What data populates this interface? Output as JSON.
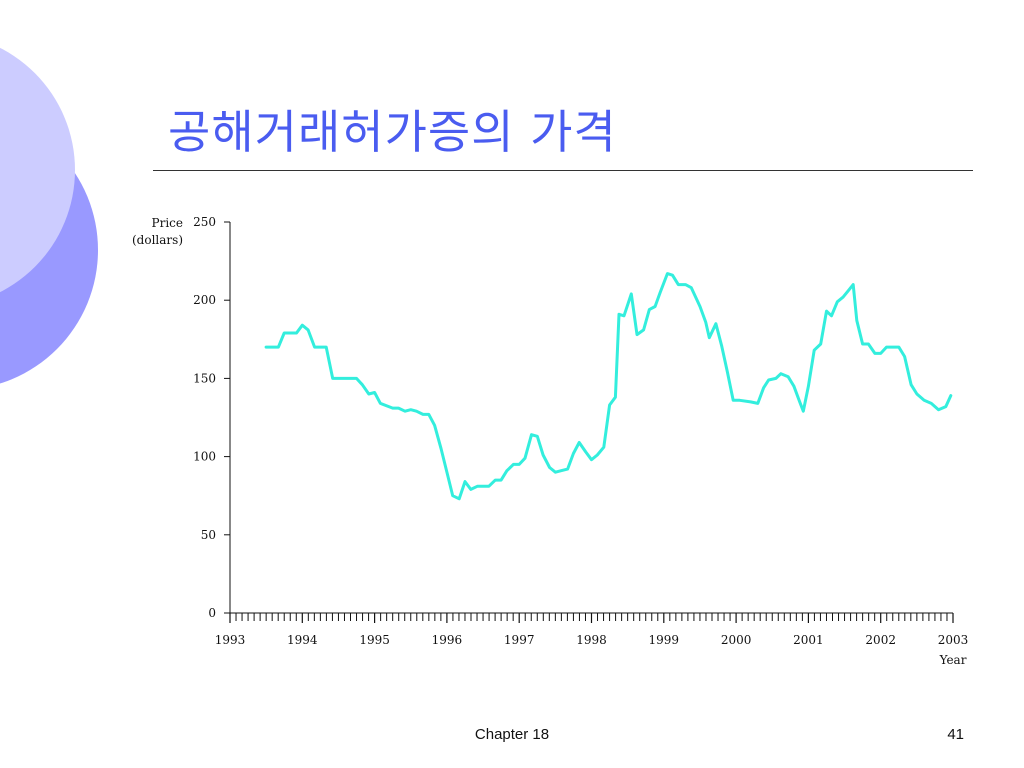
{
  "slide": {
    "title": "공해거래허가증의 가격",
    "footer_center": "Chapter 18",
    "page_number": "41",
    "colors": {
      "title": "#4a5cf0",
      "deco_light": "#ccccff",
      "deco_dark": "#9999ff",
      "line": "#33eedd"
    }
  },
  "chart_data": {
    "type": "line",
    "title": "",
    "xlabel": "Year",
    "ylabel": "Price\n(dollars)",
    "xlim": [
      1993,
      2003
    ],
    "ylim": [
      0,
      250
    ],
    "x_ticks": [
      1993,
      1994,
      1995,
      1996,
      1997,
      1998,
      1999,
      2000,
      2001,
      2002,
      2003
    ],
    "y_ticks": [
      0,
      50,
      100,
      150,
      200,
      250
    ],
    "grid": false,
    "series": [
      {
        "name": "",
        "color": "#33eedd",
        "points": [
          [
            1993.5,
            170
          ],
          [
            1993.67,
            170
          ],
          [
            1993.75,
            179
          ],
          [
            1993.92,
            179
          ],
          [
            1994.0,
            184
          ],
          [
            1994.08,
            181
          ],
          [
            1994.17,
            170
          ],
          [
            1994.33,
            170
          ],
          [
            1994.42,
            150
          ],
          [
            1994.58,
            150
          ],
          [
            1994.75,
            150
          ],
          [
            1994.83,
            146
          ],
          [
            1994.92,
            140
          ],
          [
            1995.0,
            141
          ],
          [
            1995.08,
            134
          ],
          [
            1995.25,
            131
          ],
          [
            1995.33,
            131
          ],
          [
            1995.42,
            129
          ],
          [
            1995.5,
            130
          ],
          [
            1995.58,
            129
          ],
          [
            1995.67,
            127
          ],
          [
            1995.75,
            127
          ],
          [
            1995.83,
            120
          ],
          [
            1995.92,
            105
          ],
          [
            1996.0,
            90
          ],
          [
            1996.08,
            75
          ],
          [
            1996.17,
            73
          ],
          [
            1996.25,
            84
          ],
          [
            1996.33,
            79
          ],
          [
            1996.42,
            81
          ],
          [
            1996.5,
            81
          ],
          [
            1996.58,
            81
          ],
          [
            1996.67,
            85
          ],
          [
            1996.75,
            85
          ],
          [
            1996.83,
            91
          ],
          [
            1996.92,
            95
          ],
          [
            1997.0,
            95
          ],
          [
            1997.08,
            99
          ],
          [
            1997.17,
            114
          ],
          [
            1997.25,
            113
          ],
          [
            1997.33,
            101
          ],
          [
            1997.42,
            93
          ],
          [
            1997.5,
            90
          ],
          [
            1997.58,
            91
          ],
          [
            1997.67,
            92
          ],
          [
            1997.75,
            102
          ],
          [
            1997.83,
            109
          ],
          [
            1997.92,
            103
          ],
          [
            1998.0,
            98
          ],
          [
            1998.08,
            101
          ],
          [
            1998.17,
            106
          ],
          [
            1998.25,
            133
          ],
          [
            1998.33,
            138
          ],
          [
            1998.38,
            191
          ],
          [
            1998.45,
            190
          ],
          [
            1998.55,
            204
          ],
          [
            1998.63,
            178
          ],
          [
            1998.72,
            181
          ],
          [
            1998.8,
            194
          ],
          [
            1998.88,
            196
          ],
          [
            1998.95,
            205
          ],
          [
            1999.05,
            217
          ],
          [
            1999.12,
            216
          ],
          [
            1999.2,
            210
          ],
          [
            1999.3,
            210
          ],
          [
            1999.38,
            208
          ],
          [
            1999.5,
            196
          ],
          [
            1999.58,
            186
          ],
          [
            1999.63,
            176
          ],
          [
            1999.72,
            185
          ],
          [
            1999.8,
            171
          ],
          [
            1999.88,
            154
          ],
          [
            1999.96,
            136
          ],
          [
            2000.05,
            136
          ],
          [
            2000.2,
            135
          ],
          [
            2000.3,
            134
          ],
          [
            2000.38,
            144
          ],
          [
            2000.45,
            149
          ],
          [
            2000.55,
            150
          ],
          [
            2000.62,
            153
          ],
          [
            2000.72,
            151
          ],
          [
            2000.8,
            145
          ],
          [
            2000.88,
            135
          ],
          [
            2000.93,
            129
          ],
          [
            2001.0,
            145
          ],
          [
            2001.08,
            168
          ],
          [
            2001.17,
            172
          ],
          [
            2001.25,
            193
          ],
          [
            2001.32,
            190
          ],
          [
            2001.4,
            199
          ],
          [
            2001.48,
            202
          ],
          [
            2001.55,
            206
          ],
          [
            2001.62,
            210
          ],
          [
            2001.67,
            187
          ],
          [
            2001.75,
            172
          ],
          [
            2001.83,
            172
          ],
          [
            2001.92,
            166
          ],
          [
            2002.0,
            166
          ],
          [
            2002.08,
            170
          ],
          [
            2002.25,
            170
          ],
          [
            2002.33,
            164
          ],
          [
            2002.42,
            146
          ],
          [
            2002.5,
            140
          ],
          [
            2002.6,
            136
          ],
          [
            2002.7,
            134
          ],
          [
            2002.8,
            130
          ],
          [
            2002.9,
            132
          ],
          [
            2002.97,
            139
          ]
        ]
      }
    ]
  }
}
